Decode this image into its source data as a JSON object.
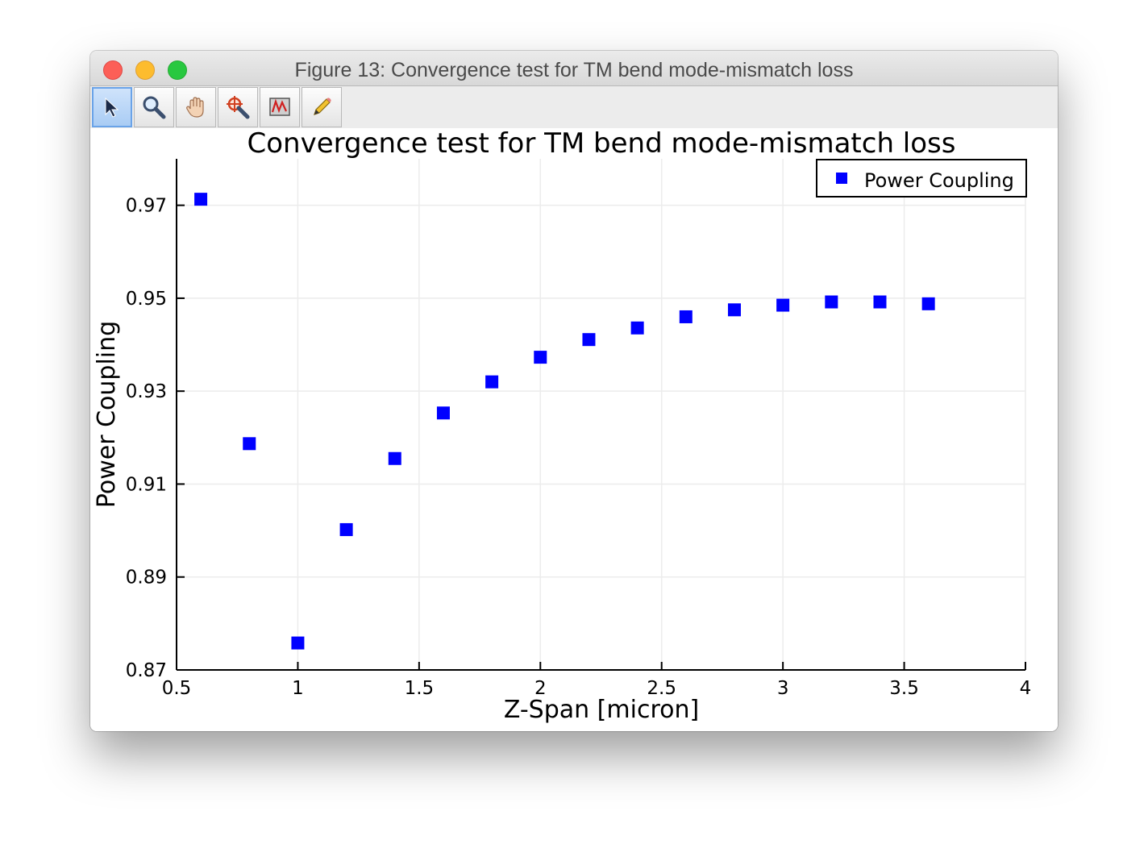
{
  "window": {
    "title": "Figure 13: Convergence test for TM bend mode-mismatch loss"
  },
  "toolbar": {
    "tools": [
      {
        "name": "select-tool",
        "icon": "arrow-cursor-icon",
        "active": true
      },
      {
        "name": "zoom-tool",
        "icon": "magnifier-icon",
        "active": false
      },
      {
        "name": "pan-tool",
        "icon": "hand-icon",
        "active": false
      },
      {
        "name": "zoom-box-tool",
        "icon": "target-zoom-icon",
        "active": false
      },
      {
        "name": "data-tool",
        "icon": "plot-window-icon",
        "active": false
      },
      {
        "name": "annotate-tool",
        "icon": "pencil-icon",
        "active": false
      }
    ]
  },
  "chart_data": {
    "type": "scatter",
    "title": "Convergence test for TM bend mode-mismatch loss",
    "xlabel": "Z-Span [micron]",
    "ylabel": "Power Coupling",
    "xlim": [
      0.5,
      4
    ],
    "ylim": [
      0.87,
      0.98
    ],
    "xticks": [
      0.5,
      1,
      1.5,
      2,
      2.5,
      3,
      3.5,
      4
    ],
    "xtick_labels": [
      "0.5",
      "1",
      "1.5",
      "2",
      "2.5",
      "3",
      "3.5",
      "4"
    ],
    "yticks": [
      0.87,
      0.89,
      0.91,
      0.93,
      0.95,
      0.97
    ],
    "ytick_labels": [
      "0.87",
      "0.89",
      "0.91",
      "0.93",
      "0.95",
      "0.97"
    ],
    "grid": true,
    "legend_position": "top-right",
    "series": [
      {
        "name": "Power Coupling",
        "color": "#0000ff",
        "marker": "square",
        "x": [
          0.6,
          0.8,
          1.0,
          1.2,
          1.4,
          1.6,
          1.8,
          2.0,
          2.2,
          2.4,
          2.6,
          2.8,
          3.0,
          3.2,
          3.4,
          3.6
        ],
        "y": [
          0.9713,
          0.9187,
          0.8758,
          0.9002,
          0.9155,
          0.9253,
          0.932,
          0.9373,
          0.9411,
          0.9436,
          0.946,
          0.9475,
          0.9485,
          0.9492,
          0.9492,
          0.9488
        ]
      }
    ]
  }
}
